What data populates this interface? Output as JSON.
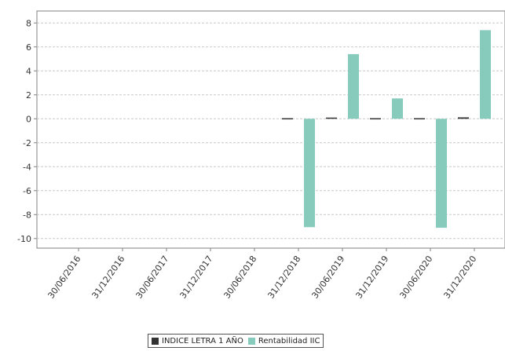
{
  "chart_data": {
    "type": "bar",
    "categories": [
      "30/06/2016",
      "31/12/2016",
      "30/06/2017",
      "31/12/2017",
      "30/06/2018",
      "31/12/2018",
      "30/06/2019",
      "31/12/2019",
      "30/06/2020",
      "31/12/2020"
    ],
    "series": [
      {
        "name": "INDICE LETRA 1 AÑO",
        "color": "#333333",
        "values": [
          null,
          null,
          null,
          null,
          null,
          -0.03,
          0.1,
          -0.02,
          -0.05,
          0.12
        ]
      },
      {
        "name": "Rentabilidad IIC",
        "color": "#87cbbd",
        "values": [
          null,
          null,
          null,
          null,
          null,
          -9.05,
          5.4,
          1.7,
          -9.1,
          7.4
        ]
      }
    ],
    "title": "",
    "xlabel": "",
    "ylabel": "",
    "ylim": [
      -10.8,
      9
    ],
    "yticks": [
      8,
      6,
      4,
      2,
      0,
      -2,
      -4,
      -6,
      -8,
      -10
    ],
    "grid": true,
    "legend_position": "bottom"
  }
}
